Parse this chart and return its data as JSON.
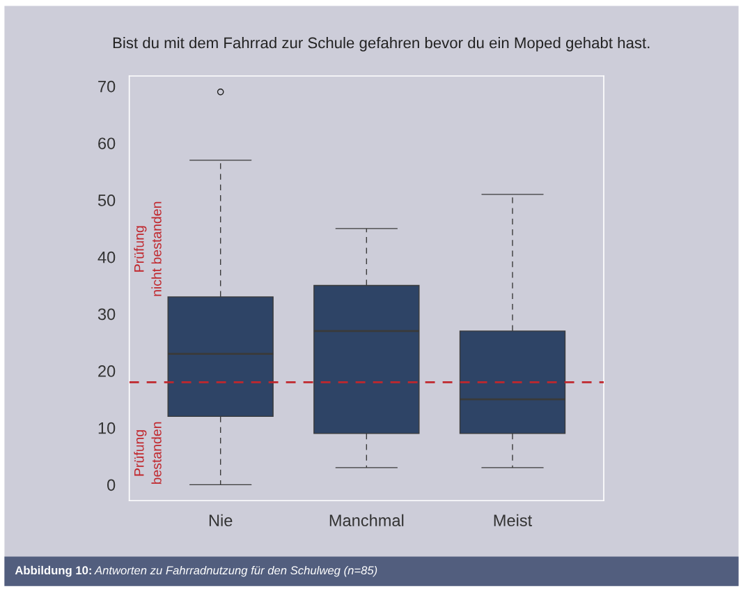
{
  "chart_data": {
    "type": "box",
    "title": "Bist du mit dem Fahrrad zur Schule gefahren bevor du ein Moped gehabt hast.",
    "categories": [
      "Nie",
      "Manchmal",
      "Meist"
    ],
    "color": "#2e4466",
    "boxes": [
      {
        "low": 0,
        "q1": 12,
        "median": 23,
        "q3": 33,
        "high": 57,
        "outliers": [
          69
        ]
      },
      {
        "low": 3,
        "q1": 9,
        "median": 27,
        "q3": 35,
        "high": 45
      },
      {
        "low": 3,
        "q1": 9,
        "median": 15,
        "q3": 27,
        "high": 51
      }
    ],
    "ylim": [
      -2.8,
      71.8
    ],
    "yticks": [
      0,
      10,
      20,
      30,
      40,
      50,
      60,
      70
    ],
    "ref_lines": [
      {
        "axis": "y",
        "value": 18,
        "color": "#c0272d",
        "line_style": "dashed"
      }
    ],
    "annotations": [
      "Prüfung\nnicht bestanden",
      "Prüfung\nbestanden",
      "Abbildung 10:",
      "Antworten zu Fahrradnutzung für den Schulweg (n=85)"
    ],
    "grid": false,
    "legend": false
  }
}
